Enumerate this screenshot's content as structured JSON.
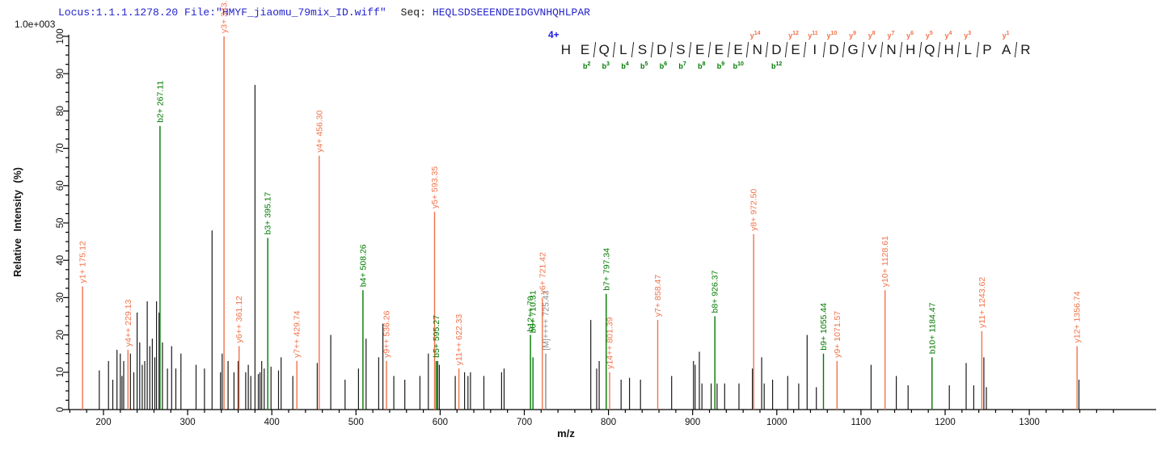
{
  "header": {
    "locus_file": "Locus:1.1.1.1278.20 File:\"HMYF_jiaomu_79mix_ID.wiff\"",
    "seq_label": "Seq:",
    "seq_value": "HEQLSDSEEENDEIDGVNHQHLPAR"
  },
  "colors": {
    "y_ion": "#f0734a",
    "b_ion": "#007a00",
    "precursor": "#8c8c8c",
    "peak": "#1a1a1a",
    "axis": "#000000",
    "header_blue": "#2323cc"
  },
  "annotation": {
    "charge_label": "4+",
    "residues": [
      "H",
      "E",
      "Q",
      "L",
      "S",
      "D",
      "S",
      "E",
      "E",
      "E",
      "N",
      "D",
      "E",
      "I",
      "D",
      "G",
      "V",
      "N",
      "H",
      "Q",
      "H",
      "L",
      "P",
      "A",
      "R"
    ],
    "y_marks": [
      {
        "gap": 10,
        "ion": "y",
        "num": "14"
      },
      {
        "gap": 12,
        "ion": "y",
        "num": "12"
      },
      {
        "gap": 13,
        "ion": "y",
        "num": "11"
      },
      {
        "gap": 14,
        "ion": "y",
        "num": "10"
      },
      {
        "gap": 15,
        "ion": "y",
        "num": "9"
      },
      {
        "gap": 16,
        "ion": "y",
        "num": "8"
      },
      {
        "gap": 17,
        "ion": "y",
        "num": "7"
      },
      {
        "gap": 18,
        "ion": "y",
        "num": "6"
      },
      {
        "gap": 19,
        "ion": "y",
        "num": "5"
      },
      {
        "gap": 20,
        "ion": "y",
        "num": "4"
      },
      {
        "gap": 21,
        "ion": "y",
        "num": "3"
      },
      {
        "gap": 23,
        "ion": "y",
        "num": "1"
      }
    ],
    "b_marks": [
      {
        "gap": 1,
        "ion": "b",
        "num": "2"
      },
      {
        "gap": 2,
        "ion": "b",
        "num": "3"
      },
      {
        "gap": 3,
        "ion": "b",
        "num": "4"
      },
      {
        "gap": 4,
        "ion": "b",
        "num": "5"
      },
      {
        "gap": 5,
        "ion": "b",
        "num": "6"
      },
      {
        "gap": 6,
        "ion": "b",
        "num": "7"
      },
      {
        "gap": 7,
        "ion": "b",
        "num": "8"
      },
      {
        "gap": 8,
        "ion": "b",
        "num": "9"
      },
      {
        "gap": 9,
        "ion": "b",
        "num": "10"
      },
      {
        "gap": 11,
        "ion": "b",
        "num": "12"
      }
    ]
  },
  "chart_data": {
    "type": "bar",
    "subtype": "ms2-centroid-stick-spectrum",
    "title": "",
    "xlabel": "m/z",
    "ylabel": "Relative Intensity (%)",
    "y_scale_note": "1.0e+003",
    "xlim": [
      160,
      1400
    ],
    "ylim": [
      0,
      100
    ],
    "x_major_ticks": [
      200,
      300,
      400,
      500,
      600,
      700,
      800,
      900,
      1000,
      1100,
      1200,
      1300
    ],
    "x_minor_step": 20,
    "y_major_step": 10,
    "y_minor_step": 2.5,
    "grid": false,
    "peaks": [
      {
        "mz": 175.12,
        "i": 33,
        "type": "y",
        "label": "y1+ 175.12"
      },
      {
        "mz": 195,
        "i": 10.5,
        "type": "peak"
      },
      {
        "mz": 206,
        "i": 13,
        "type": "peak"
      },
      {
        "mz": 211,
        "i": 8,
        "type": "peak"
      },
      {
        "mz": 216,
        "i": 16,
        "type": "peak"
      },
      {
        "mz": 220,
        "i": 15,
        "type": "peak"
      },
      {
        "mz": 222,
        "i": 9,
        "type": "peak"
      },
      {
        "mz": 224,
        "i": 13,
        "type": "peak"
      },
      {
        "mz": 229.13,
        "i": 16,
        "type": "y",
        "label": "y4++ 229.13"
      },
      {
        "mz": 232,
        "i": 15,
        "type": "peak"
      },
      {
        "mz": 236,
        "i": 10,
        "type": "peak"
      },
      {
        "mz": 240,
        "i": 26,
        "type": "peak"
      },
      {
        "mz": 243,
        "i": 18,
        "type": "peak"
      },
      {
        "mz": 246,
        "i": 12,
        "type": "peak"
      },
      {
        "mz": 249,
        "i": 13,
        "type": "peak"
      },
      {
        "mz": 252,
        "i": 29,
        "type": "peak"
      },
      {
        "mz": 255,
        "i": 17,
        "type": "peak"
      },
      {
        "mz": 258,
        "i": 19,
        "type": "peak"
      },
      {
        "mz": 261,
        "i": 14,
        "type": "peak"
      },
      {
        "mz": 263,
        "i": 29,
        "type": "peak"
      },
      {
        "mz": 266,
        "i": 26,
        "type": "peak"
      },
      {
        "mz": 267.11,
        "i": 76,
        "type": "b",
        "label": "b2+ 267.11"
      },
      {
        "mz": 270,
        "i": 18,
        "type": "peak"
      },
      {
        "mz": 276,
        "i": 11,
        "type": "peak"
      },
      {
        "mz": 281,
        "i": 17,
        "type": "peak"
      },
      {
        "mz": 286,
        "i": 11,
        "type": "peak"
      },
      {
        "mz": 292,
        "i": 15,
        "type": "peak"
      },
      {
        "mz": 310,
        "i": 12,
        "type": "peak"
      },
      {
        "mz": 320,
        "i": 11,
        "type": "peak"
      },
      {
        "mz": 329,
        "i": 48,
        "type": "peak"
      },
      {
        "mz": 339,
        "i": 10,
        "type": "peak"
      },
      {
        "mz": 341,
        "i": 15,
        "type": "peak"
      },
      {
        "mz": 343.21,
        "i": 100,
        "type": "y",
        "label": "y3+ 343.21"
      },
      {
        "mz": 348,
        "i": 13,
        "type": "peak"
      },
      {
        "mz": 355,
        "i": 10,
        "type": "peak"
      },
      {
        "mz": 360,
        "i": 13,
        "type": "peak"
      },
      {
        "mz": 361.12,
        "i": 17,
        "type": "y",
        "label": "y6++ 361.12"
      },
      {
        "mz": 369,
        "i": 10,
        "type": "peak"
      },
      {
        "mz": 372,
        "i": 12,
        "type": "peak"
      },
      {
        "mz": 375,
        "i": 9,
        "type": "peak"
      },
      {
        "mz": 380,
        "i": 87,
        "type": "peak"
      },
      {
        "mz": 384,
        "i": 9.5,
        "type": "peak"
      },
      {
        "mz": 386,
        "i": 10,
        "type": "peak"
      },
      {
        "mz": 388,
        "i": 13,
        "type": "peak"
      },
      {
        "mz": 391,
        "i": 11,
        "type": "peak"
      },
      {
        "mz": 395.17,
        "i": 46,
        "type": "b",
        "label": "b3+ 395.17"
      },
      {
        "mz": 399,
        "i": 11.5,
        "type": "peak"
      },
      {
        "mz": 408,
        "i": 10.5,
        "type": "peak"
      },
      {
        "mz": 411,
        "i": 14,
        "type": "peak"
      },
      {
        "mz": 425,
        "i": 9,
        "type": "peak"
      },
      {
        "mz": 429.74,
        "i": 13,
        "type": "y",
        "label": "y7++ 429.74"
      },
      {
        "mz": 454,
        "i": 12.5,
        "type": "peak"
      },
      {
        "mz": 456.3,
        "i": 68,
        "type": "y",
        "label": "y4+ 456.30"
      },
      {
        "mz": 470,
        "i": 20,
        "type": "peak"
      },
      {
        "mz": 487,
        "i": 8,
        "type": "peak"
      },
      {
        "mz": 503,
        "i": 11,
        "type": "peak"
      },
      {
        "mz": 508.26,
        "i": 32,
        "type": "b",
        "label": "b4+ 508.26"
      },
      {
        "mz": 512,
        "i": 19,
        "type": "peak"
      },
      {
        "mz": 527,
        "i": 14,
        "type": "peak"
      },
      {
        "mz": 532,
        "i": 23,
        "type": "peak"
      },
      {
        "mz": 536.26,
        "i": 13,
        "type": "y",
        "label": "y9++ 536.26"
      },
      {
        "mz": 545,
        "i": 9,
        "type": "peak"
      },
      {
        "mz": 558,
        "i": 8,
        "type": "peak"
      },
      {
        "mz": 576,
        "i": 9,
        "type": "peak"
      },
      {
        "mz": 586,
        "i": 15,
        "type": "peak"
      },
      {
        "mz": 593.35,
        "i": 53,
        "type": "y",
        "label": "y5+ 593.35"
      },
      {
        "mz": 595.27,
        "i": 13,
        "type": "b",
        "label": "b5+ 595.27"
      },
      {
        "mz": 597,
        "i": 13,
        "type": "peak"
      },
      {
        "mz": 599,
        "i": 12,
        "type": "peak"
      },
      {
        "mz": 618,
        "i": 9,
        "type": "peak"
      },
      {
        "mz": 622.33,
        "i": 11,
        "type": "y",
        "label": "y11++ 622.33"
      },
      {
        "mz": 629,
        "i": 10,
        "type": "peak"
      },
      {
        "mz": 633,
        "i": 9,
        "type": "peak"
      },
      {
        "mz": 636,
        "i": 10,
        "type": "peak"
      },
      {
        "mz": 652,
        "i": 9,
        "type": "peak"
      },
      {
        "mz": 673,
        "i": 10,
        "type": "peak"
      },
      {
        "mz": 676,
        "i": 11,
        "type": "peak"
      },
      {
        "mz": 707.27,
        "i": 20,
        "type": "b",
        "label": "b12++ 70"
      },
      {
        "mz": 710.31,
        "i": 14,
        "type": "b",
        "label": "b6+ 710.31",
        "label_lift": 26
      },
      {
        "mz": 721.42,
        "i": 30,
        "type": "y",
        "label": "y6+ 721.42"
      },
      {
        "mz": 725.43,
        "i": 15,
        "type": "M",
        "label": "[M]++++ 725.43"
      },
      {
        "mz": 779,
        "i": 24,
        "type": "peak"
      },
      {
        "mz": 786,
        "i": 11,
        "type": "peak"
      },
      {
        "mz": 789,
        "i": 13,
        "type": "peak"
      },
      {
        "mz": 797.34,
        "i": 31,
        "type": "b",
        "label": "b7+ 797.34"
      },
      {
        "mz": 801.39,
        "i": 10,
        "type": "y",
        "label": "y14++ 801.39"
      },
      {
        "mz": 815,
        "i": 8,
        "type": "peak"
      },
      {
        "mz": 825,
        "i": 8.5,
        "type": "peak"
      },
      {
        "mz": 838,
        "i": 8,
        "type": "peak"
      },
      {
        "mz": 858.47,
        "i": 24,
        "type": "y",
        "label": "y7+ 858.47"
      },
      {
        "mz": 875,
        "i": 9,
        "type": "peak"
      },
      {
        "mz": 901,
        "i": 13,
        "type": "peak"
      },
      {
        "mz": 903,
        "i": 12,
        "type": "peak"
      },
      {
        "mz": 908,
        "i": 15.5,
        "type": "peak"
      },
      {
        "mz": 911,
        "i": 7,
        "type": "peak"
      },
      {
        "mz": 922,
        "i": 7,
        "type": "peak"
      },
      {
        "mz": 926.37,
        "i": 25,
        "type": "b",
        "label": "b8+ 926.37"
      },
      {
        "mz": 929,
        "i": 7,
        "type": "peak"
      },
      {
        "mz": 938,
        "i": 7,
        "type": "peak"
      },
      {
        "mz": 955,
        "i": 7,
        "type": "peak"
      },
      {
        "mz": 971,
        "i": 11,
        "type": "peak"
      },
      {
        "mz": 972.5,
        "i": 47,
        "type": "y",
        "label": "y8+ 972.50"
      },
      {
        "mz": 982,
        "i": 14,
        "type": "peak"
      },
      {
        "mz": 985,
        "i": 7,
        "type": "peak"
      },
      {
        "mz": 995,
        "i": 8,
        "type": "peak"
      },
      {
        "mz": 1013,
        "i": 9,
        "type": "peak"
      },
      {
        "mz": 1026,
        "i": 7,
        "type": "peak"
      },
      {
        "mz": 1036,
        "i": 20,
        "type": "peak"
      },
      {
        "mz": 1047,
        "i": 6,
        "type": "peak"
      },
      {
        "mz": 1055.44,
        "i": 15,
        "type": "b",
        "label": "b9+ 1055.44"
      },
      {
        "mz": 1071.57,
        "i": 13,
        "type": "y",
        "label": "y9+ 1071.57"
      },
      {
        "mz": 1112,
        "i": 12,
        "type": "peak"
      },
      {
        "mz": 1128.61,
        "i": 32,
        "type": "y",
        "label": "y10+ 1128.61"
      },
      {
        "mz": 1142,
        "i": 9,
        "type": "peak"
      },
      {
        "mz": 1156,
        "i": 6.5,
        "type": "peak"
      },
      {
        "mz": 1184.47,
        "i": 14,
        "type": "b",
        "label": "b10+ 1184.47"
      },
      {
        "mz": 1205,
        "i": 6.5,
        "type": "peak"
      },
      {
        "mz": 1225,
        "i": 12.5,
        "type": "peak"
      },
      {
        "mz": 1234,
        "i": 6.5,
        "type": "peak"
      },
      {
        "mz": 1243.62,
        "i": 21,
        "type": "y",
        "label": "y11+ 1243.62"
      },
      {
        "mz": 1246,
        "i": 14,
        "type": "peak"
      },
      {
        "mz": 1249,
        "i": 6,
        "type": "peak"
      },
      {
        "mz": 1356.74,
        "i": 17,
        "type": "y",
        "label": "y12+ 1356.74"
      },
      {
        "mz": 1359,
        "i": 8,
        "type": "peak"
      }
    ]
  }
}
